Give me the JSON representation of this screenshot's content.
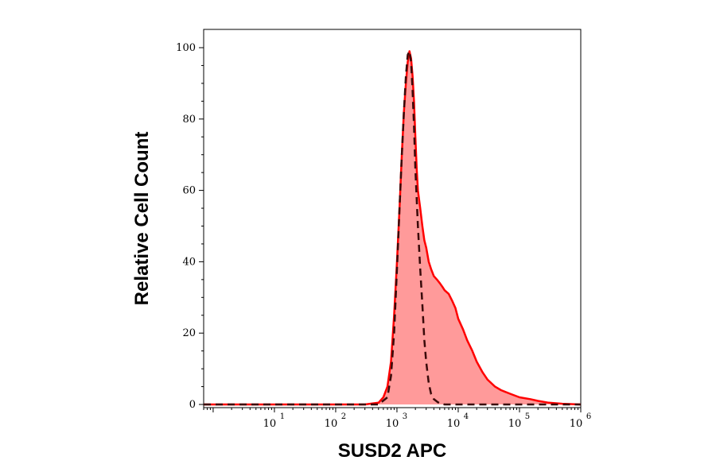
{
  "chart_data": {
    "type": "area",
    "xlabel": "SUSD2 APC",
    "ylabel": "Relative Cell Count",
    "x_scale": "log",
    "xlim": [
      0.7,
      1000000
    ],
    "ylim": [
      0,
      100
    ],
    "x_ticks": [
      {
        "base": "10",
        "exp": "1",
        "value": 10
      },
      {
        "base": "10",
        "exp": "2",
        "value": 100
      },
      {
        "base": "10",
        "exp": "3",
        "value": 1000
      },
      {
        "base": "10",
        "exp": "4",
        "value": 10000
      },
      {
        "base": "10",
        "exp": "5",
        "value": 100000
      },
      {
        "base": "10",
        "exp": "6",
        "value": 1000000
      }
    ],
    "y_ticks": [
      "0",
      "20",
      "40",
      "60",
      "80",
      "100"
    ],
    "series": [
      {
        "style": "filled-solid",
        "color": "#ff0000",
        "fill": "#ff9a9a",
        "x": [
          0.7,
          100,
          300,
          500,
          600,
          700,
          800,
          900,
          1000,
          1100,
          1200,
          1300,
          1400,
          1500,
          1600,
          1700,
          1800,
          1900,
          2000,
          2100,
          2200,
          2400,
          2600,
          2800,
          3000,
          3300,
          3600,
          4000,
          4500,
          5000,
          5500,
          6000,
          7000,
          8000,
          9000,
          10000,
          12000,
          14000,
          17000,
          20000,
          25000,
          30000,
          40000,
          50000,
          70000,
          100000,
          150000,
          200000,
          300000,
          500000,
          1000000
        ],
        "y": [
          0,
          0,
          0,
          0.5,
          2,
          5,
          12,
          25,
          40,
          55,
          70,
          82,
          90,
          96,
          99,
          97,
          92,
          85,
          75,
          66,
          60,
          55,
          50,
          46,
          44,
          40,
          38,
          36,
          35,
          34,
          33,
          32,
          31,
          29,
          27,
          24,
          21,
          18,
          15,
          12,
          9,
          7,
          5,
          4,
          3,
          2,
          1.5,
          1,
          0.5,
          0.2,
          0
        ]
      },
      {
        "style": "dashed",
        "color": "#3a0a0a",
        "x": [
          0.7,
          500,
          700,
          800,
          900,
          1000,
          1100,
          1200,
          1300,
          1400,
          1500,
          1600,
          1700,
          1800,
          1900,
          2000,
          2200,
          2400,
          2600,
          2800,
          3000,
          3300,
          3600,
          4000,
          4500,
          5000,
          6000,
          1000000
        ],
        "y": [
          0,
          0,
          2,
          8,
          20,
          38,
          55,
          70,
          82,
          92,
          98,
          99,
          96,
          88,
          78,
          66,
          50,
          38,
          28,
          18,
          12,
          6,
          3,
          1.5,
          0.8,
          0.3,
          0,
          0
        ]
      }
    ]
  }
}
